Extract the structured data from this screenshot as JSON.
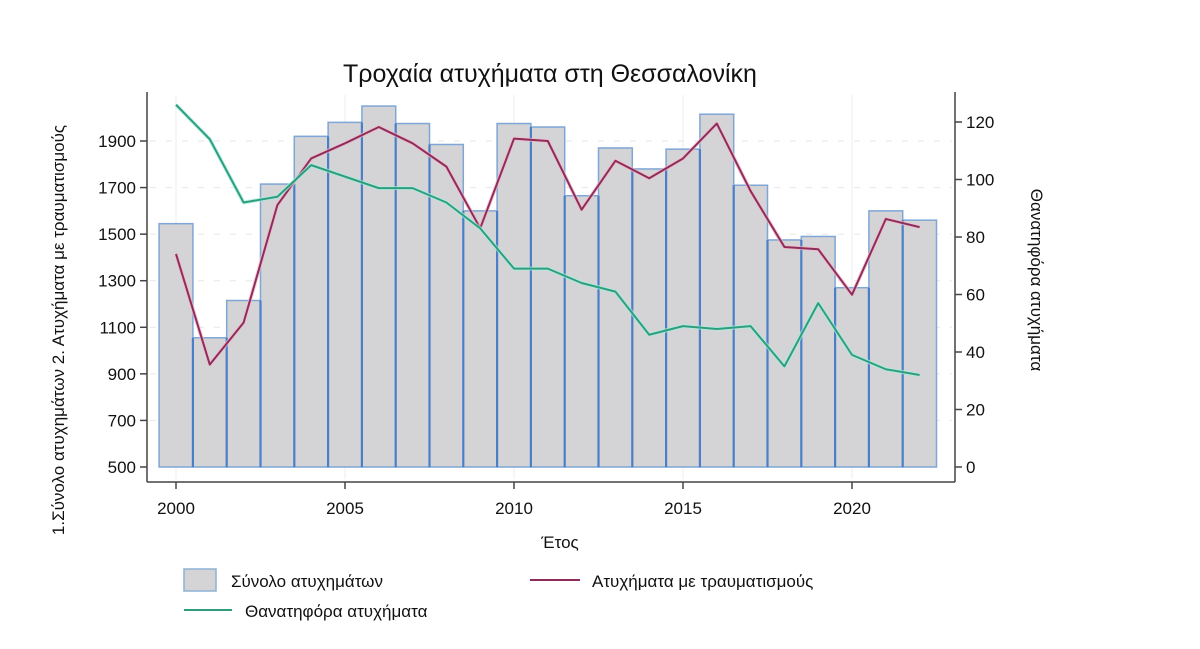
{
  "chart_data": {
    "type": "bar",
    "title": "Τροχαία ατυχήματα στη Θεσσαλονίκη",
    "xlabel": "Έτος",
    "ylabel": "1.Σύνολο ατυχημάτων 2. Ατυχήματα με τραυματισμούς",
    "ylabel_right": "Θανατηφόρα ατυχήματα",
    "ylim": [
      500,
      2080
    ],
    "ylim_right": [
      0,
      130
    ],
    "yticks": [
      500,
      700,
      900,
      1100,
      1300,
      1500,
      1700,
      1900
    ],
    "yticks_right": [
      0,
      20,
      40,
      60,
      80,
      100,
      120
    ],
    "xticks": [
      2000,
      2005,
      2010,
      2015,
      2020
    ],
    "grid": true,
    "legend_position": "bottom",
    "categories": [
      2000,
      2001,
      2002,
      2003,
      2004,
      2005,
      2006,
      2007,
      2008,
      2009,
      2010,
      2011,
      2012,
      2013,
      2014,
      2015,
      2016,
      2017,
      2018,
      2019,
      2020,
      2021,
      2022
    ],
    "series": [
      {
        "name": "Σύνολο ατυχημάτων",
        "type": "bar",
        "axis": "left",
        "color": "#d4d4d6",
        "edge_color": "#5b8fd0",
        "values": [
          1545,
          1055,
          1215,
          1715,
          1920,
          1980,
          2050,
          1975,
          1885,
          1600,
          1975,
          1960,
          1665,
          1870,
          1780,
          1865,
          2015,
          1710,
          1475,
          1490,
          1270,
          1600,
          1560
        ]
      },
      {
        "name": "Ατυχήματα με τραυματισμούς",
        "type": "line",
        "axis": "left",
        "color": "#8e2d5c",
        "values": [
          1415,
          940,
          1120,
          1625,
          1825,
          1890,
          1960,
          1890,
          1790,
          1525,
          1910,
          1900,
          1605,
          1815,
          1740,
          1825,
          1975,
          1685,
          1445,
          1435,
          1240,
          1565,
          1530
        ]
      },
      {
        "name": "Θανατηφόρα ατυχήματα",
        "type": "line",
        "axis": "right",
        "color": "#2f9e7f",
        "values": [
          126,
          114,
          92,
          94,
          105,
          101,
          97,
          97,
          92,
          83,
          69,
          69,
          64,
          61,
          46,
          49,
          48,
          49,
          35,
          57,
          39,
          34,
          32
        ]
      }
    ]
  },
  "legend": {
    "items": [
      {
        "label": "Σύνολο ατυχημάτων",
        "kind": "bar"
      },
      {
        "label": "Ατυχήματα με τραυματισμούς",
        "kind": "line"
      },
      {
        "label": "Θανατηφόρα ατυχήματα",
        "kind": "line"
      }
    ]
  }
}
